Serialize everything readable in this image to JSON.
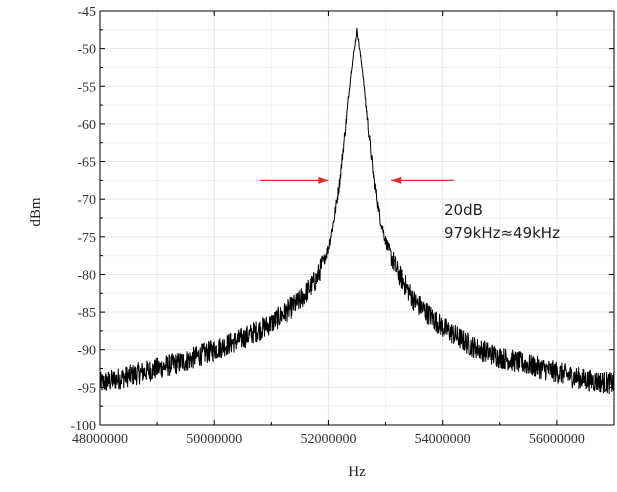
{
  "chart_data": {
    "type": "line",
    "title": "",
    "xlabel": "Hz",
    "ylabel": "dBm",
    "xlim": [
      48000000,
      57000000
    ],
    "ylim": [
      -100,
      -45
    ],
    "x_ticks": [
      48000000,
      50000000,
      52000000,
      54000000,
      56000000
    ],
    "x_tick_labels": [
      "48000000",
      "50000000",
      "52000000",
      "54000000",
      "56000000"
    ],
    "y_ticks": [
      -45,
      -50,
      -55,
      -60,
      -65,
      -70,
      -75,
      -80,
      -85,
      -90,
      -95,
      -100
    ],
    "y_tick_labels": [
      "-45",
      "-50",
      "-55",
      "-60",
      "-65",
      "-70",
      "-75",
      "-80",
      "-85",
      "-90",
      "-95",
      "-100"
    ],
    "grid": true,
    "series": [
      {
        "color": "#000000",
        "x": [
          48000000,
          48500000,
          49000000,
          49500000,
          50000000,
          50500000,
          51000000,
          51500000,
          51800000,
          52000000,
          52100000,
          52200000,
          52300000,
          52400000,
          52500000,
          52600000,
          52700000,
          52800000,
          52900000,
          53000000,
          53200000,
          53500000,
          54000000,
          54500000,
          55000000,
          55500000,
          56000000,
          56500000,
          57000000
        ],
        "y": [
          -94.5,
          -93.5,
          -92.5,
          -91.5,
          -90,
          -88.5,
          -86.5,
          -83.5,
          -80.5,
          -76.5,
          -72.5,
          -67.5,
          -60.5,
          -53,
          -47.5,
          -53,
          -60.5,
          -67.5,
          -72.5,
          -75.5,
          -79.5,
          -83.5,
          -87,
          -89.5,
          -91,
          -92,
          -93,
          -94,
          -94.5
        ]
      }
    ],
    "annotations": {
      "line1": "20dB",
      "line2": "979kHz≈49kHz",
      "arrow_color": "#e0302a",
      "left_arrow_x": [
        50800000,
        52000000
      ],
      "right_arrow_x": [
        54200000,
        53100000
      ],
      "arrow_y": -67.5
    }
  }
}
